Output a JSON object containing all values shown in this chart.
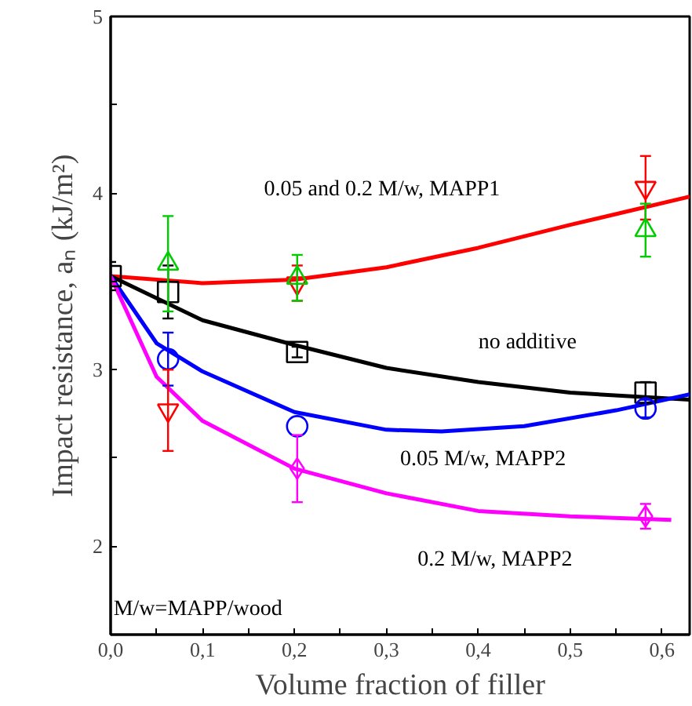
{
  "chart_data": {
    "type": "scatter",
    "xlabel": "Volume fraction of filler",
    "ylabel": "Impact resistance, aₙ (kJ/m²)",
    "xlim": [
      0,
      0.63
    ],
    "ylim": [
      1.5,
      5
    ],
    "xticks": [
      {
        "value": 0,
        "label": "0,0"
      },
      {
        "value": 0.05,
        "label": null
      },
      {
        "value": 0.1,
        "label": "0,1"
      },
      {
        "value": 0.15,
        "label": null
      },
      {
        "value": 0.2,
        "label": "0,2"
      },
      {
        "value": 0.25,
        "label": null
      },
      {
        "value": 0.3,
        "label": "0,3"
      },
      {
        "value": 0.35,
        "label": null
      },
      {
        "value": 0.4,
        "label": "0,4"
      },
      {
        "value": 0.45,
        "label": null
      },
      {
        "value": 0.5,
        "label": "0,5"
      },
      {
        "value": 0.55,
        "label": null
      },
      {
        "value": 0.6,
        "label": "0,6"
      }
    ],
    "yticks": [
      2,
      {
        "value": 2.5,
        "label": null
      },
      3,
      {
        "value": 3.5,
        "label": null
      },
      4,
      {
        "value": 4.5,
        "label": null
      },
      5
    ],
    "grid": false,
    "series": [
      {
        "type": "line",
        "color": "#ff0000",
        "x": [
          0,
          0.1,
          0.2,
          0.3,
          0.4,
          0.5,
          0.63
        ],
        "values": [
          3.53,
          3.49,
          3.51,
          3.58,
          3.69,
          3.82,
          3.98
        ]
      },
      {
        "type": "line",
        "color": "#000000",
        "x": [
          0,
          0.1,
          0.2,
          0.3,
          0.4,
          0.5,
          0.63
        ],
        "values": [
          3.53,
          3.28,
          3.14,
          3.01,
          2.93,
          2.87,
          2.83
        ]
      },
      {
        "type": "line",
        "color": "#0000ff",
        "x": [
          0,
          0.05,
          0.1,
          0.2,
          0.3,
          0.36,
          0.45,
          0.55,
          0.63
        ],
        "values": [
          3.53,
          3.15,
          2.99,
          2.76,
          2.66,
          2.65,
          2.68,
          2.77,
          2.86
        ]
      },
      {
        "type": "line",
        "color": "#ff00ff",
        "x": [
          0,
          0.05,
          0.1,
          0.2,
          0.3,
          0.4,
          0.5,
          0.61
        ],
        "values": [
          3.53,
          2.96,
          2.71,
          2.44,
          2.3,
          2.2,
          2.17,
          2.15
        ]
      },
      {
        "marker": "square",
        "color": "#000000",
        "x": [
          0,
          0.0625,
          0.203,
          0.582
        ],
        "values": [
          3.53,
          3.44,
          3.1,
          2.87
        ],
        "errors": [
          0.08,
          0.15,
          0.03,
          0.06
        ]
      },
      {
        "marker": "circle",
        "color": "#0000ff",
        "x": [
          0.0625,
          0.203,
          0.582
        ],
        "values": [
          3.06,
          2.68,
          2.78
        ],
        "errors": [
          0.15,
          null,
          0.05
        ]
      },
      {
        "marker": "diamond",
        "color": "#ff00ff",
        "x": [
          0.203,
          0.582
        ],
        "values": [
          2.44,
          2.17
        ],
        "errors": [
          0.19,
          0.07
        ]
      },
      {
        "color": "#ff0000",
        "x": [
          0.0625,
          0.203,
          0.582
        ],
        "values": [
          2.77,
          3.49,
          4.03
        ],
        "errors": [
          0.23,
          0.1,
          0.18
        ]
      },
      {
        "marker": "triangle",
        "color": "#00cc00",
        "x": [
          0.0625,
          0.203,
          0.582
        ],
        "values": [
          3.6,
          3.52,
          3.79
        ],
        "errors": [
          0.27,
          0.13,
          0.15
        ]
      }
    ],
    "annotations": [
      "0.05 and 0.2 M/w, MAPP1",
      "no additive",
      "0.05 M/w, MAPP2",
      "0.2 M/w, MAPP2",
      "M/w=MAPP/wood"
    ]
  }
}
